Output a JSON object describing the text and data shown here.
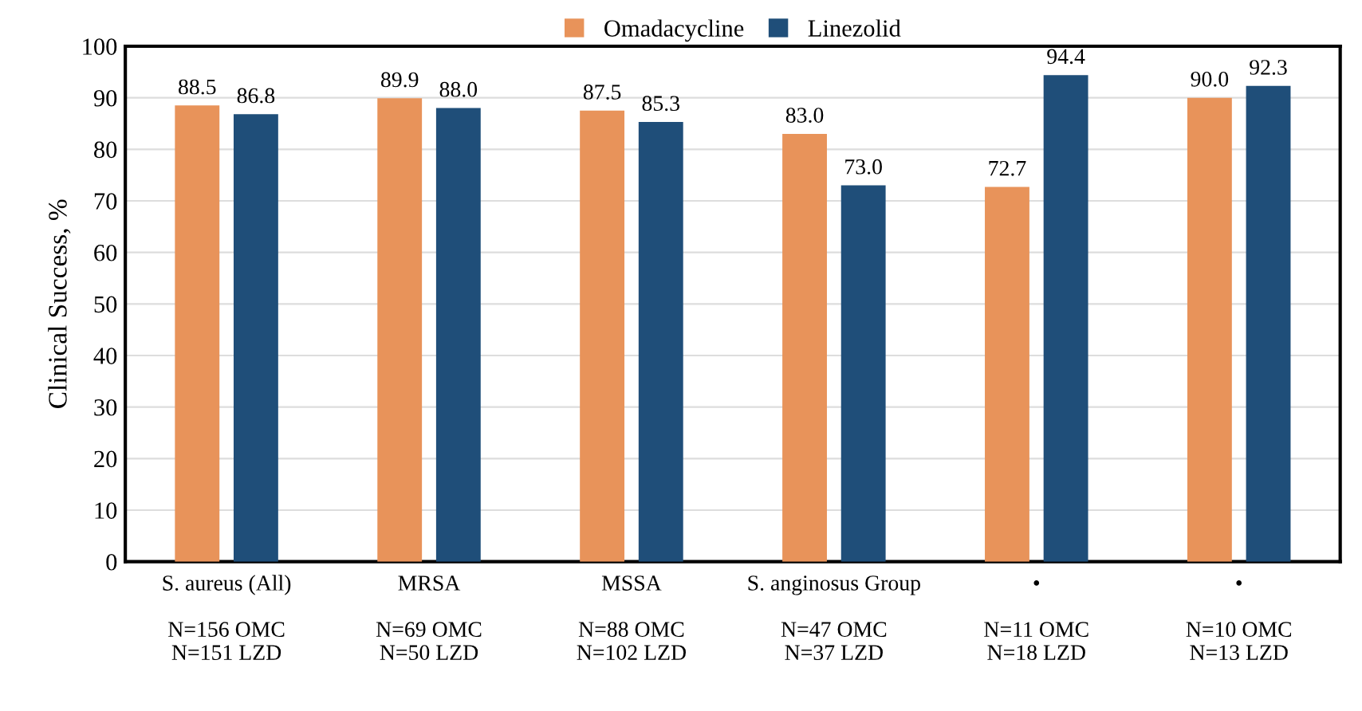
{
  "chart_data": {
    "type": "bar",
    "ylabel": "Clinical Success, %",
    "categories": [
      "S. aureus (All)\n\nN=156 OMC\nN=151 LZD",
      "MRSA\n\nN=69 OMC\nN=50 LZD",
      "MSSA\n\nN=88 OMC\nN=102 LZD",
      "S. anginosus Group\n\nN=47 OMC\nN=37 LZD",
      "•\n\nN=11 OMC\nN=18 LZD",
      "•\n\nN=10 OMC\nN=13 LZD"
    ],
    "series": [
      {
        "name": "Omadacycline",
        "color": "#e8935a",
        "values": [
          88.5,
          89.9,
          87.5,
          83.0,
          72.7,
          90.0
        ],
        "value_labels": [
          "88.5",
          "89.9",
          "87.5",
          "83.0",
          "72.7",
          "90.0"
        ]
      },
      {
        "name": "Linezolid",
        "color": "#1f4e79",
        "values": [
          86.8,
          88.0,
          85.3,
          73.0,
          94.4,
          92.3
        ],
        "value_labels": [
          "86.8",
          "88.0",
          "85.3",
          "73.0",
          "94.4",
          "92.3"
        ]
      }
    ],
    "ylim": [
      0,
      100
    ],
    "yticks": [
      0,
      10,
      20,
      30,
      40,
      50,
      60,
      70,
      80,
      90,
      100
    ],
    "grid": "y",
    "legend": "top"
  }
}
